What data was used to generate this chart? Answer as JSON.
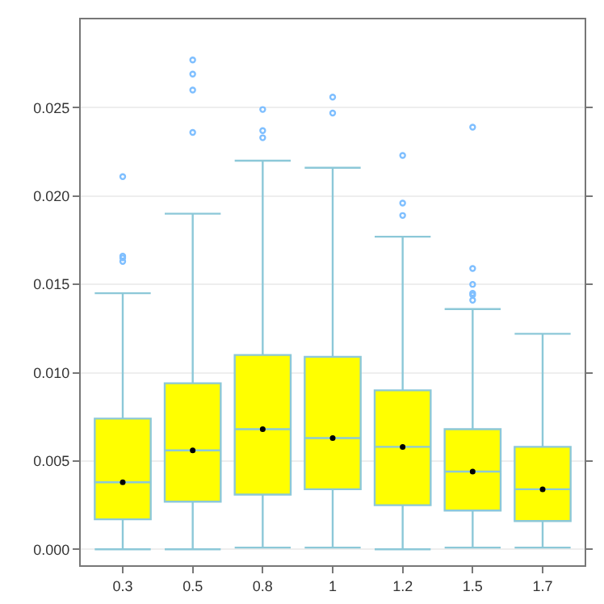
{
  "chart_data": {
    "type": "box",
    "categories": [
      "0.3",
      "0.5",
      "0.8",
      "1",
      "1.2",
      "1.5",
      "1.7"
    ],
    "color": "#ffff00",
    "boxes": [
      {
        "low": 0,
        "q1": 0.0017,
        "median": 0.0038,
        "q3": 0.0074,
        "high": 0.0145,
        "outliers": [
          0.0211,
          0.0166,
          0.0165,
          0.0163
        ]
      },
      {
        "low": 0,
        "q1": 0.0027,
        "median": 0.0056,
        "q3": 0.0094,
        "high": 0.019,
        "outliers": [
          0.0277,
          0.0269,
          0.026,
          0.0236
        ]
      },
      {
        "low": 0.0001,
        "q1": 0.0031,
        "median": 0.0068,
        "q3": 0.011,
        "high": 0.022,
        "outliers": [
          0.0249,
          0.0237,
          0.0233
        ]
      },
      {
        "low": 0.0001,
        "q1": 0.0034,
        "median": 0.0063,
        "q3": 0.0109,
        "high": 0.0216,
        "outliers": [
          0.0256,
          0.0247
        ]
      },
      {
        "low": 0,
        "q1": 0.0025,
        "median": 0.0058,
        "q3": 0.009,
        "high": 0.0177,
        "outliers": [
          0.0223,
          0.0196,
          0.0189
        ]
      },
      {
        "low": 0.0001,
        "q1": 0.0022,
        "median": 0.0044,
        "q3": 0.0068,
        "high": 0.0136,
        "outliers": [
          0.0239,
          0.0159,
          0.015,
          0.0145,
          0.0144,
          0.0141
        ]
      },
      {
        "low": 0.0001,
        "q1": 0.0016,
        "median": 0.0034,
        "q3": 0.0058,
        "high": 0.0122
      }
    ],
    "series": [
      {
        "type": "scatter",
        "color": "#000000",
        "x": [
          "0.3",
          "0.5",
          "0.8",
          "1",
          "1.2",
          "1.5",
          "1.7"
        ],
        "values": [
          0.0038,
          0.0056,
          0.0068,
          0.0063,
          0.0058,
          0.0044,
          0.0034
        ]
      }
    ],
    "ylim": [
      -0.0009,
      0.03
    ],
    "yticks": [
      {
        "value": 0,
        "label": "0.000"
      },
      {
        "value": 0.005,
        "label": "0.005"
      },
      {
        "value": 0.01,
        "label": "0.010"
      },
      {
        "value": 0.015,
        "label": "0.015"
      },
      {
        "value": 0.02,
        "label": "0.020"
      },
      {
        "value": 0.025,
        "label": "0.025"
      }
    ],
    "grid": "y",
    "marker": "circle"
  }
}
